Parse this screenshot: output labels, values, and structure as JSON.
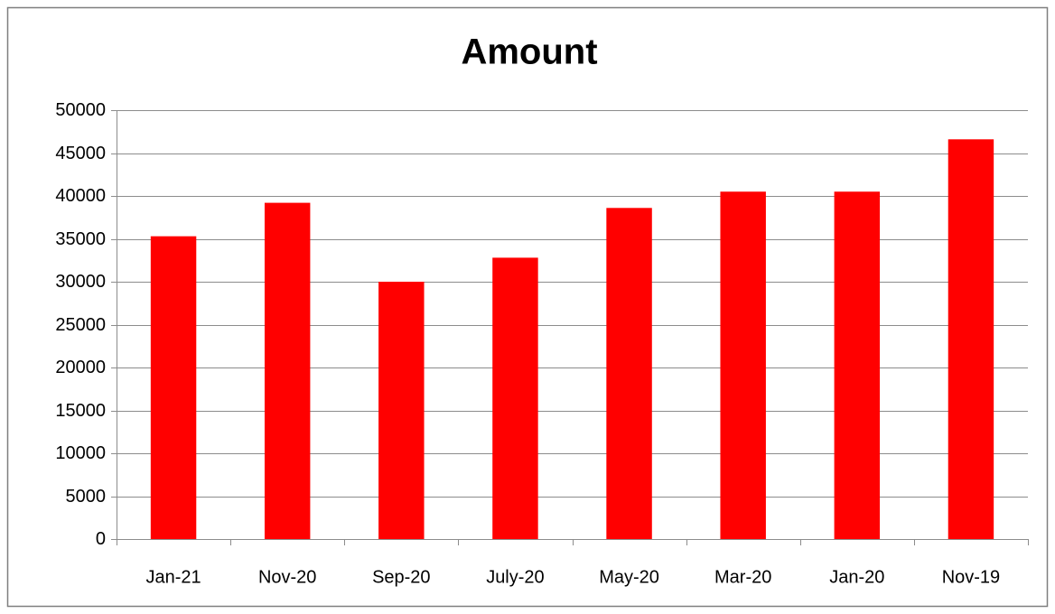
{
  "chart_data": {
    "type": "bar",
    "title": "Amount",
    "categories": [
      "Jan-21",
      "Nov-20",
      "Sep-20",
      "July-20",
      "May-20",
      "Mar-20",
      "Jan-20",
      "Nov-19"
    ],
    "values": [
      35300,
      39200,
      30000,
      32800,
      38600,
      40500,
      40500,
      46600
    ],
    "color": "#ff0000",
    "ylim": [
      0,
      50000
    ],
    "yticks": [
      0,
      5000,
      10000,
      15000,
      20000,
      25000,
      30000,
      35000,
      40000,
      45000,
      50000
    ],
    "grid": true
  }
}
